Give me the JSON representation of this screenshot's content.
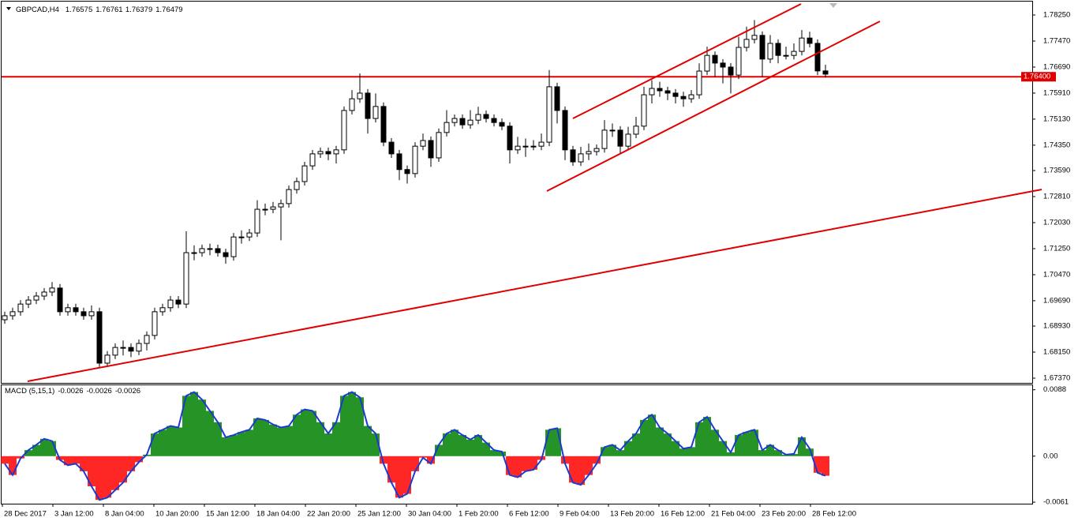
{
  "chart_data": [
    {
      "type": "candlestick",
      "symbol": "GBPCAD,H4",
      "candles": [
        [
          1.6912,
          1.6936,
          1.69,
          1.6924
        ],
        [
          1.6924,
          1.6948,
          1.6912,
          1.6936
        ],
        [
          1.6936,
          1.6971,
          1.6924,
          1.6959
        ],
        [
          1.6959,
          1.6983,
          1.6947,
          1.6971
        ],
        [
          1.6971,
          1.6995,
          1.6959,
          1.6983
        ],
        [
          1.6983,
          1.7007,
          1.6971,
          1.6995
        ],
        [
          1.6995,
          1.7025,
          1.6983,
          1.7007
        ],
        [
          1.7007,
          1.7019,
          1.6924,
          1.6936
        ],
        [
          1.6936,
          1.696,
          1.6924,
          1.6948
        ],
        [
          1.6948,
          1.696,
          1.6924,
          1.6936
        ],
        [
          1.6936,
          1.6948,
          1.6912,
          1.6924
        ],
        [
          1.6924,
          1.6955,
          1.6912,
          1.6936
        ],
        [
          1.6936,
          1.6948,
          1.677,
          1.6782
        ],
        [
          1.6782,
          1.6818,
          1.677,
          1.6806
        ],
        [
          1.6806,
          1.6841,
          1.6794,
          1.6829
        ],
        [
          1.6829,
          1.685,
          1.6805,
          1.6829
        ],
        [
          1.6829,
          1.6841,
          1.68,
          1.6818
        ],
        [
          1.6818,
          1.6853,
          1.6806,
          1.6841
        ],
        [
          1.6841,
          1.6877,
          1.682,
          1.6865
        ],
        [
          1.6865,
          1.6948,
          1.6853,
          1.6936
        ],
        [
          1.6936,
          1.696,
          1.6924,
          1.6948
        ],
        [
          1.6948,
          1.6983,
          1.6936,
          1.6971
        ],
        [
          1.6971,
          1.6983,
          1.6947,
          1.6959
        ],
        [
          1.6959,
          1.7177,
          1.6947,
          1.7113
        ],
        [
          1.7113,
          1.7135,
          1.709,
          1.7113
        ],
        [
          1.7113,
          1.7137,
          1.7101,
          1.7125
        ],
        [
          1.7125,
          1.714,
          1.7105,
          1.7125
        ],
        [
          1.7125,
          1.7137,
          1.7101,
          1.7113
        ],
        [
          1.7113,
          1.7125,
          1.708,
          1.7101
        ],
        [
          1.7101,
          1.7172,
          1.7089,
          1.716
        ],
        [
          1.716,
          1.718,
          1.714,
          1.716
        ],
        [
          1.716,
          1.7184,
          1.7148,
          1.7172
        ],
        [
          1.7172,
          1.727,
          1.716,
          1.7243
        ],
        [
          1.7243,
          1.726,
          1.7225,
          1.7243
        ],
        [
          1.7243,
          1.7265,
          1.7231,
          1.725
        ],
        [
          1.725,
          1.7272,
          1.715,
          1.726
        ],
        [
          1.726,
          1.7314,
          1.7248,
          1.7302
        ],
        [
          1.7302,
          1.7338,
          1.729,
          1.7326
        ],
        [
          1.7326,
          1.7385,
          1.7314,
          1.7373
        ],
        [
          1.7373,
          1.7421,
          1.7361,
          1.7409
        ],
        [
          1.7409,
          1.7428,
          1.7397,
          1.7416
        ],
        [
          1.7416,
          1.7428,
          1.739,
          1.7409
        ],
        [
          1.7409,
          1.7433,
          1.738,
          1.7421
        ],
        [
          1.7421,
          1.7551,
          1.7409,
          1.7539
        ],
        [
          1.7539,
          1.76,
          1.7527,
          1.7574
        ],
        [
          1.7574,
          1.765,
          1.7562,
          1.7591
        ],
        [
          1.7591,
          1.7603,
          1.747,
          1.7515
        ],
        [
          1.7515,
          1.759,
          1.7503,
          1.7551
        ],
        [
          1.7551,
          1.7563,
          1.7432,
          1.7444
        ],
        [
          1.7444,
          1.7456,
          1.7397,
          1.7409
        ],
        [
          1.7409,
          1.7421,
          1.733,
          1.7362
        ],
        [
          1.7362,
          1.7374,
          1.732,
          1.735
        ],
        [
          1.735,
          1.7444,
          1.7338,
          1.7432
        ],
        [
          1.7432,
          1.747,
          1.742,
          1.7449
        ],
        [
          1.7449,
          1.7461,
          1.737,
          1.7397
        ],
        [
          1.7397,
          1.7485,
          1.7385,
          1.7473
        ],
        [
          1.7473,
          1.754,
          1.7461,
          1.7503
        ],
        [
          1.7503,
          1.7527,
          1.7491,
          1.7515
        ],
        [
          1.7515,
          1.7527,
          1.7484,
          1.7496
        ],
        [
          1.7496,
          1.754,
          1.7484,
          1.751
        ],
        [
          1.751,
          1.755,
          1.7498,
          1.7527
        ],
        [
          1.7527,
          1.7539,
          1.7503,
          1.7515
        ],
        [
          1.7515,
          1.7527,
          1.7491,
          1.7503
        ],
        [
          1.7503,
          1.7515,
          1.748,
          1.7492
        ],
        [
          1.7492,
          1.7504,
          1.738,
          1.7421
        ],
        [
          1.7421,
          1.746,
          1.7409,
          1.7432
        ],
        [
          1.7432,
          1.7455,
          1.74,
          1.7432
        ],
        [
          1.7432,
          1.745,
          1.742,
          1.7432
        ],
        [
          1.7432,
          1.747,
          1.742,
          1.7444
        ],
        [
          1.7444,
          1.766,
          1.7432,
          1.761
        ],
        [
          1.761,
          1.7622,
          1.75,
          1.7539
        ],
        [
          1.7539,
          1.7551,
          1.739,
          1.7421
        ],
        [
          1.7421,
          1.7433,
          1.7373,
          1.7385
        ],
        [
          1.7385,
          1.743,
          1.7373,
          1.7409
        ],
        [
          1.7409,
          1.744,
          1.739,
          1.7416
        ],
        [
          1.7416,
          1.7437,
          1.7404,
          1.7425
        ],
        [
          1.7425,
          1.751,
          1.7413,
          1.748
        ],
        [
          1.748,
          1.75,
          1.746,
          1.748
        ],
        [
          1.748,
          1.7492,
          1.741,
          1.7432
        ],
        [
          1.7432,
          1.749,
          1.742,
          1.7468
        ],
        [
          1.7468,
          1.752,
          1.7456,
          1.7492
        ],
        [
          1.7492,
          1.761,
          1.748,
          1.7586
        ],
        [
          1.7586,
          1.763,
          1.756,
          1.7605
        ],
        [
          1.7605,
          1.7625,
          1.758,
          1.7598
        ],
        [
          1.7598,
          1.761,
          1.757,
          1.7591
        ],
        [
          1.7591,
          1.7603,
          1.756,
          1.7581
        ],
        [
          1.7581,
          1.7595,
          1.755,
          1.7574
        ],
        [
          1.7574,
          1.76,
          1.7562,
          1.7586
        ],
        [
          1.7586,
          1.768,
          1.7574,
          1.7657
        ],
        [
          1.7657,
          1.773,
          1.7645,
          1.7704
        ],
        [
          1.7704,
          1.7716,
          1.764,
          1.7681
        ],
        [
          1.7681,
          1.7693,
          1.762,
          1.7669
        ],
        [
          1.7669,
          1.7681,
          1.759,
          1.7645
        ],
        [
          1.7645,
          1.776,
          1.7633,
          1.7728
        ],
        [
          1.7728,
          1.779,
          1.7716,
          1.7752
        ],
        [
          1.7752,
          1.781,
          1.774,
          1.7764
        ],
        [
          1.7764,
          1.7776,
          1.764,
          1.7693
        ],
        [
          1.7693,
          1.7765,
          1.7681,
          1.774
        ],
        [
          1.774,
          1.7752,
          1.768,
          1.7704
        ],
        [
          1.7704,
          1.773,
          1.7692,
          1.7704
        ],
        [
          1.7704,
          1.774,
          1.7692,
          1.7716
        ],
        [
          1.7716,
          1.778,
          1.7704,
          1.7756
        ],
        [
          1.7756,
          1.7775,
          1.7728,
          1.774
        ],
        [
          1.774,
          1.7752,
          1.7645,
          1.76575
        ],
        [
          1.76575,
          1.76761,
          1.76379,
          1.76479
        ]
      ],
      "ylim": [
        1.67228,
        1.78605
      ],
      "yticks": [
        {
          "value": 1.7825,
          "label": "1.78250"
        },
        {
          "value": 1.7747,
          "label": "1.77470"
        },
        {
          "value": 1.7669,
          "label": "1.76690"
        },
        {
          "value": 1.7591,
          "label": "1.75910"
        },
        {
          "value": 1.7513,
          "label": "1.75130"
        },
        {
          "value": 1.7435,
          "label": "1.74350"
        },
        {
          "value": 1.7359,
          "label": "1.73590"
        },
        {
          "value": 1.7281,
          "label": "1.72810"
        },
        {
          "value": 1.7203,
          "label": "1.72030"
        },
        {
          "value": 1.7125,
          "label": "1.71250"
        },
        {
          "value": 1.7047,
          "label": "1.70470"
        },
        {
          "value": 1.6969,
          "label": "1.69690"
        },
        {
          "value": 1.6893,
          "label": "1.68930"
        },
        {
          "value": 1.6815,
          "label": "1.68150"
        },
        {
          "value": 1.6737,
          "label": "1.67370"
        }
      ],
      "hline": {
        "value": 1.764,
        "label": "1.76400",
        "color": "#e00000"
      },
      "up_color": "#ffffff",
      "down_color": "#000000",
      "x_labels": [
        "28 Dec 2017",
        "3 Jan 12:00",
        "8 Jan 04:00",
        "10 Jan 20:00",
        "15 Jan 12:00",
        "18 Jan 04:00",
        "22 Jan 20:00",
        "25 Jan 12:00",
        "30 Jan 04:00",
        "1 Feb 20:00",
        "6 Feb 12:00",
        "9 Feb 04:00",
        "13 Feb 20:00",
        "16 Feb 12:00",
        "21 Feb 04:00",
        "23 Feb 20:00",
        "28 Feb 12:00"
      ]
    },
    {
      "type": "bar",
      "title": "MACD (5,15,1)",
      "title_values": [
        -0.0026,
        -0.0026,
        -0.0026
      ],
      "values": [
        -0.001,
        -0.0025,
        -0.0003,
        0.0008,
        0.0015,
        0.0023,
        0.002,
        -0.0005,
        -0.0012,
        -0.001,
        -0.002,
        -0.004,
        -0.0058,
        -0.0055,
        -0.0045,
        -0.0035,
        -0.002,
        -0.0008,
        0.0002,
        0.003,
        0.0035,
        0.004,
        0.0038,
        0.008,
        0.0085,
        0.0075,
        0.006,
        0.0045,
        0.0025,
        0.0028,
        0.0032,
        0.0035,
        0.005,
        0.0048,
        0.0042,
        0.0038,
        0.004,
        0.0055,
        0.0062,
        0.006,
        0.0045,
        0.003,
        0.0045,
        0.008,
        0.0085,
        0.0078,
        0.004,
        0.003,
        -0.001,
        -0.0035,
        -0.0055,
        -0.005,
        -0.002,
        -0.0002,
        -0.001,
        0.0015,
        0.003,
        0.0035,
        0.0028,
        0.0022,
        0.0028,
        0.0018,
        0.0008,
        0.0006,
        -0.0025,
        -0.0028,
        -0.002,
        -0.0018,
        -0.0005,
        0.0035,
        0.0037,
        -0.001,
        -0.0035,
        -0.0038,
        -0.0025,
        -0.001,
        0.0012,
        0.0015,
        0.0008,
        0.002,
        0.003,
        0.0048,
        0.0055,
        0.0038,
        0.003,
        0.002,
        0.001,
        0.0012,
        0.0045,
        0.0052,
        0.0035,
        0.002,
        0.0005,
        0.0028,
        0.0032,
        0.0035,
        0.0008,
        0.0015,
        0.0008,
        0.0002,
        0.0003,
        0.0025,
        0.001,
        -0.0022,
        -0.0026
      ],
      "pos_color": "#008000",
      "neg_color": "#ff0000",
      "line_color": "#1a3ad0",
      "ylim": [
        -0.0063,
        0.0095
      ],
      "yticks": [
        0.0088,
        {
          "value": 0,
          "label": "0.00"
        },
        -0.0061
      ]
    }
  ]
}
